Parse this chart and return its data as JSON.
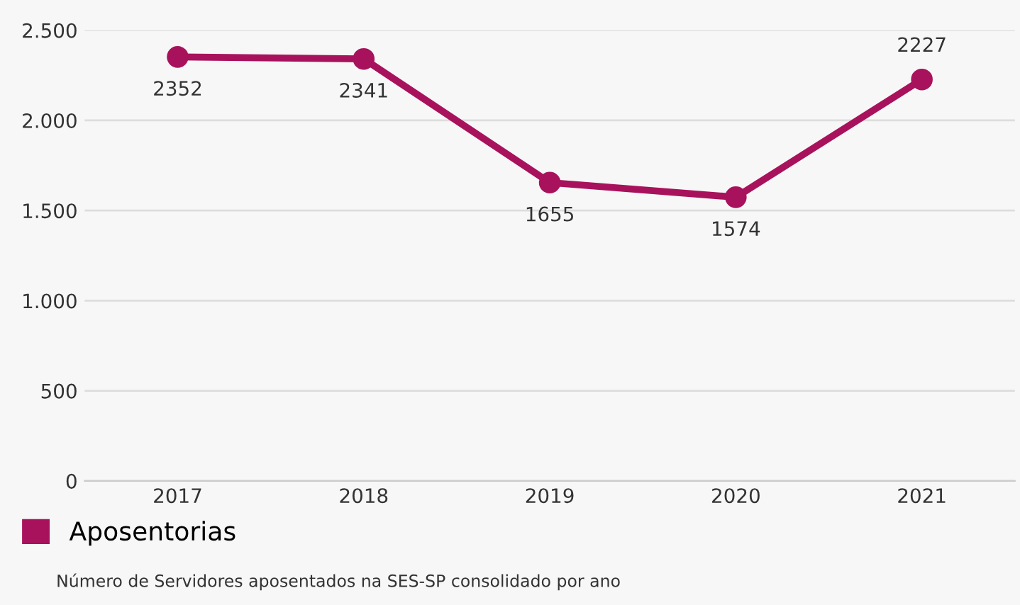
{
  "chart_data": {
    "type": "line",
    "categories": [
      "2017",
      "2018",
      "2019",
      "2020",
      "2021"
    ],
    "series": [
      {
        "name": "Aposentorias",
        "color": "#a8125c",
        "values": [
          2352,
          2341,
          1655,
          1574,
          2227
        ]
      }
    ],
    "ylim": [
      0,
      2500
    ],
    "yticks": [
      0,
      500,
      {
        "value": 1000,
        "label": "1.000"
      },
      {
        "value": 1500,
        "label": "1.500"
      },
      {
        "value": 2000,
        "label": "2.000"
      },
      {
        "value": 2500,
        "label": "2.500"
      }
    ],
    "grid": "y",
    "legend": "bottom left",
    "marker": "circle",
    "line_style": "solid",
    "data_labels": true,
    "annotations": [
      "Número de Servidores aposentados na SES-SP consolidado por ano"
    ]
  }
}
